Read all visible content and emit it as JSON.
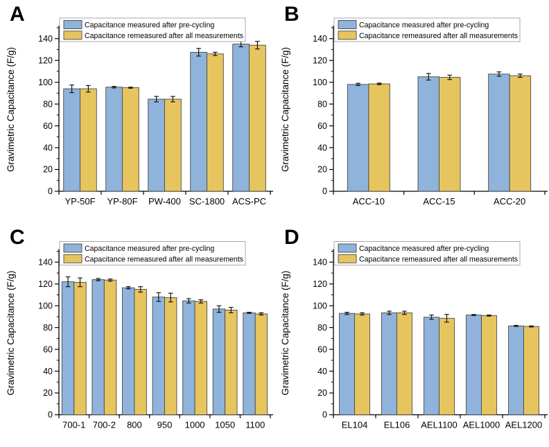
{
  "figure": {
    "background": "#ffffff"
  },
  "legend": {
    "border_color": "#a9a9a9",
    "background": "#ffffff",
    "items": [
      {
        "label": "Capacitance measured after pre-cycling",
        "swatch": "blue-swatch",
        "color": "#8FB3DA"
      },
      {
        "label": "Capacitance remeasured after all measurements",
        "swatch": "yellow-swatch",
        "color": "#E7C55E"
      }
    ]
  },
  "style": {
    "series_colors": [
      "#8FB3DA",
      "#E7C55E"
    ],
    "bar_edge_color": "#474747",
    "axis_color": "#000000",
    "error_bar_color": "#141414"
  },
  "chart_data": [
    {
      "panel_label": "A",
      "type": "bar",
      "title": "",
      "xlabel": "",
      "ylabel": "Gravimetric Capacitance (F/g)",
      "ylim": [
        0,
        150
      ],
      "ytick_step": 20,
      "ytick_minor_step": 10,
      "ytick_label_max": 140,
      "grid": false,
      "legend_position": "top-inside",
      "group_fraction": 0.78,
      "categories": [
        "YP-50F",
        "YP-80F",
        "PW-400",
        "SC-1800",
        "ACS-PC"
      ],
      "series": [
        {
          "name": "Capacitance measured after pre-cycling",
          "values": [
            94,
            95.5,
            84.5,
            127.5,
            135
          ],
          "errors": [
            3.5,
            0.7,
            2.5,
            3.5,
            2.5
          ]
        },
        {
          "name": "Capacitance remeasured after all measurements",
          "values": [
            94,
            95,
            84.5,
            126,
            134
          ],
          "errors": [
            3,
            0.5,
            2.5,
            1.5,
            3.5
          ]
        }
      ]
    },
    {
      "panel_label": "B",
      "type": "bar",
      "title": "",
      "xlabel": "",
      "ylabel": "Gravimetric Capacitance (F/g)",
      "ylim": [
        0,
        150
      ],
      "ytick_step": 20,
      "ytick_minor_step": 10,
      "ytick_label_max": 140,
      "grid": false,
      "legend_position": "top-inside",
      "group_fraction": 0.6,
      "categories": [
        "ACC-10",
        "ACC-15",
        "ACC-20"
      ],
      "series": [
        {
          "name": "Capacitance measured after pre-cycling",
          "values": [
            98,
            105,
            107.5
          ],
          "errors": [
            1,
            3,
            2
          ]
        },
        {
          "name": "Capacitance remeasured after all measurements",
          "values": [
            98.5,
            104.5,
            106
          ],
          "errors": [
            0.7,
            2,
            1.5
          ]
        }
      ]
    },
    {
      "panel_label": "C",
      "type": "bar",
      "title": "",
      "xlabel": "",
      "ylabel": "Gravimetric Capacitance (F/g)",
      "ylim": [
        0,
        150
      ],
      "ytick_step": 20,
      "ytick_minor_step": 10,
      "ytick_label_max": 140,
      "grid": false,
      "legend_position": "top-inside",
      "group_fraction": 0.8,
      "categories": [
        "700-1",
        "700-2",
        "800",
        "950",
        "1000",
        "1050",
        "1100"
      ],
      "series": [
        {
          "name": "Capacitance measured after pre-cycling",
          "values": [
            122,
            124,
            116.5,
            108,
            104.5,
            97,
            93.5
          ],
          "errors": [
            4.5,
            1,
            1,
            4,
            2,
            3,
            0.5
          ]
        },
        {
          "name": "Capacitance remeasured after all measurements",
          "values": [
            121.5,
            123.5,
            115,
            107.5,
            104,
            96,
            92.5
          ],
          "errors": [
            4,
            1,
            2.5,
            4,
            1.5,
            2.5,
            1
          ]
        }
      ]
    },
    {
      "panel_label": "D",
      "type": "bar",
      "title": "",
      "xlabel": "",
      "ylabel": "Gravimetric Capacitance (F/g)",
      "ylim": [
        0,
        150
      ],
      "ytick_step": 20,
      "ytick_minor_step": 10,
      "ytick_label_max": 140,
      "grid": false,
      "legend_position": "top-inside",
      "group_fraction": 0.72,
      "categories": [
        "EL104",
        "EL106",
        "AEL1100",
        "AEL1000",
        "AEL1200"
      ],
      "series": [
        {
          "name": "Capacitance measured after pre-cycling",
          "values": [
            93,
            93.5,
            89.5,
            91.5,
            81.5
          ],
          "errors": [
            1,
            1.5,
            2,
            0.5,
            0.5
          ]
        },
        {
          "name": "Capacitance remeasured after all measurements",
          "values": [
            92.5,
            93.5,
            88.5,
            91,
            81
          ],
          "errors": [
            1,
            1.5,
            3.5,
            0.5,
            0.5
          ]
        }
      ]
    }
  ]
}
